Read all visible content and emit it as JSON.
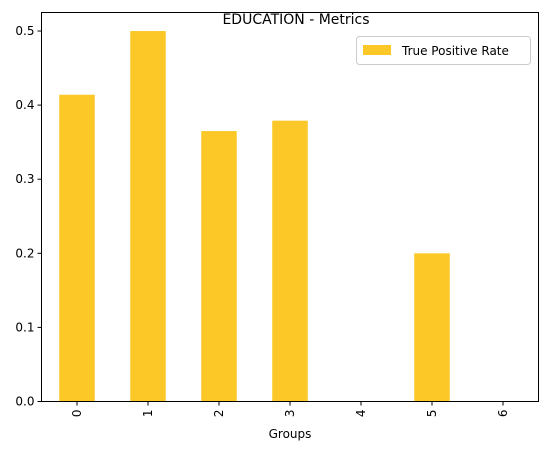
{
  "chart_data": {
    "type": "bar",
    "title": "EDUCATION - Metrics",
    "xlabel": "Groups",
    "ylabel": "",
    "categories": [
      "0",
      "1",
      "2",
      "3",
      "4",
      "5",
      "6"
    ],
    "series": [
      {
        "name": "True Positive Rate",
        "values": [
          0.414,
          0.5,
          0.365,
          0.379,
          0,
          0.2,
          0
        ],
        "color": "#fcc827"
      }
    ],
    "ylim": [
      0,
      0.525
    ],
    "yticks": [
      "0.0",
      "0.1",
      "0.2",
      "0.3",
      "0.4",
      "0.5"
    ],
    "ytick_values": [
      0,
      0.1,
      0.2,
      0.3,
      0.4,
      0.5
    ],
    "grid": false,
    "legend_position": "top-right"
  }
}
